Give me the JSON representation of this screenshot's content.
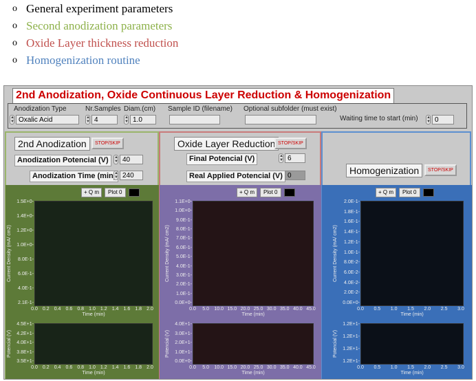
{
  "bullets": [
    {
      "text": "General experiment parameters",
      "color": "#000000"
    },
    {
      "text": "Second anodization parameters",
      "color": "#8db14a"
    },
    {
      "text": "Oxide Layer thickness reduction",
      "color": "#c0504d"
    },
    {
      "text": "Homogenization routine",
      "color": "#4f81bd"
    }
  ],
  "bullet_mark": "o",
  "panel_title": "2nd Anodization, Oxide Continuous Layer Reduction & Homogenization",
  "params": {
    "anodization_type": {
      "label": "Anodization Type",
      "value": "Oxalic Acid"
    },
    "nr_samples": {
      "label": "Nr.Samples",
      "value": "4"
    },
    "diam": {
      "label": "Diam.(cm)",
      "value": "1.0"
    },
    "sample_id": {
      "label": "Sample ID (filename)",
      "value": ""
    },
    "subfolder": {
      "label": "Optional subfolder (must exist)",
      "value": ""
    },
    "waiting": {
      "label": "Waiting time to start (min)",
      "value": "0"
    }
  },
  "stop_label": "STOP/SKIP",
  "plot_label": "Plot 0",
  "tool_labels": [
    "+",
    "Q",
    "m"
  ],
  "sections": {
    "anod": {
      "title": "2nd Anodization",
      "potential": {
        "label": "Anodization Potencial (V)",
        "value": "40"
      },
      "time": {
        "label": "Anodization Time (min)",
        "value": "240"
      },
      "main": {
        "ylabel": "Current Density (mA/ cm2)",
        "xlabel": "Time (min)",
        "yticks": [
          "1.5E+0-",
          "1.4E+0-",
          "1.2E+0-",
          "1.0E+0-",
          "8.0E-1-",
          "6.0E-1-",
          "4.0E-1-",
          "2.1E-1-"
        ],
        "xticks": [
          "0.0",
          "0.2",
          "0.4",
          "0.6",
          "0.8",
          "1.0",
          "1.2",
          "1.4",
          "1.6",
          "1.8",
          "2.0"
        ]
      },
      "small": {
        "ylabel": "Potencial (V)",
        "xlabel": "Time (min)",
        "yticks": [
          "4.5E+1-",
          "4.2E+1-",
          "4.0E+1-",
          "3.8E+1-",
          "3.5E+1-"
        ],
        "xticks": [
          "0.0",
          "0.2",
          "0.4",
          "0.6",
          "0.8",
          "1.0",
          "1.2",
          "1.4",
          "1.6",
          "1.8",
          "2.0"
        ]
      }
    },
    "oxide": {
      "title": "Oxide Layer Reduction",
      "final": {
        "label": "Final Potencial (V)",
        "value": "6"
      },
      "real": {
        "label": "Real Applied Potencial (V)",
        "value": "0"
      },
      "main": {
        "ylabel": "Current Density (mA/ cm2)",
        "xlabel": "Time (min)",
        "yticks": [
          "1.1E+0-",
          "1.0E+0-",
          "9.0E-1-",
          "8.0E-1-",
          "7.0E-1-",
          "6.0E-1-",
          "5.0E-1-",
          "4.0E-1-",
          "3.0E-1-",
          "2.0E-1-",
          "1.0E-1-",
          "0.0E+0-"
        ],
        "xticks": [
          "0.0",
          "5.0",
          "10.0",
          "15.0",
          "20.0",
          "25.0",
          "30.0",
          "35.0",
          "40.0",
          "45.0"
        ]
      },
      "small": {
        "ylabel": "Potencial (V)",
        "xlabel": "Time (min)",
        "yticks": [
          "4.0E+1-",
          "3.0E+1-",
          "2.0E+1-",
          "1.0E+1-",
          "0.0E+0-"
        ],
        "xticks": [
          "0.0",
          "5.0",
          "10.0",
          "15.0",
          "20.0",
          "25.0",
          "30.0",
          "35.0",
          "40.0",
          "45.0"
        ]
      }
    },
    "homo": {
      "title": "Homogenization",
      "main": {
        "ylabel": "Current Density (mA/ cm2)",
        "xlabel": "Time (min)",
        "yticks": [
          "2.0E-1-",
          "1.8E-1-",
          "1.6E-1-",
          "1.4E-1-",
          "1.2E-1-",
          "1.0E-1-",
          "8.0E-2-",
          "6.0E-2-",
          "4.0E-2-",
          "2.0E-2-",
          "0.0E+0-"
        ],
        "xticks": [
          "0.0",
          "0.5",
          "1.0",
          "1.5",
          "2.0",
          "2.5",
          "3.0"
        ]
      },
      "small": {
        "ylabel": "Potencial (V)",
        "xlabel": "Time (min)",
        "yticks": [
          "1.2E+1-",
          "1.2E+1-",
          "1.2E+1-",
          "1.2E+1-"
        ],
        "xticks": [
          "0.0",
          "0.5",
          "1.0",
          "1.5",
          "2.0",
          "2.5",
          "3.0"
        ]
      }
    }
  },
  "colors": {
    "anod_bg": "#5d7a38",
    "anod_plot": "#182418",
    "oxide_bg": "#7d6ea8",
    "oxide_plot": "#241416",
    "homo_bg": "#3a6fb8",
    "homo_plot": "#0b1018"
  }
}
